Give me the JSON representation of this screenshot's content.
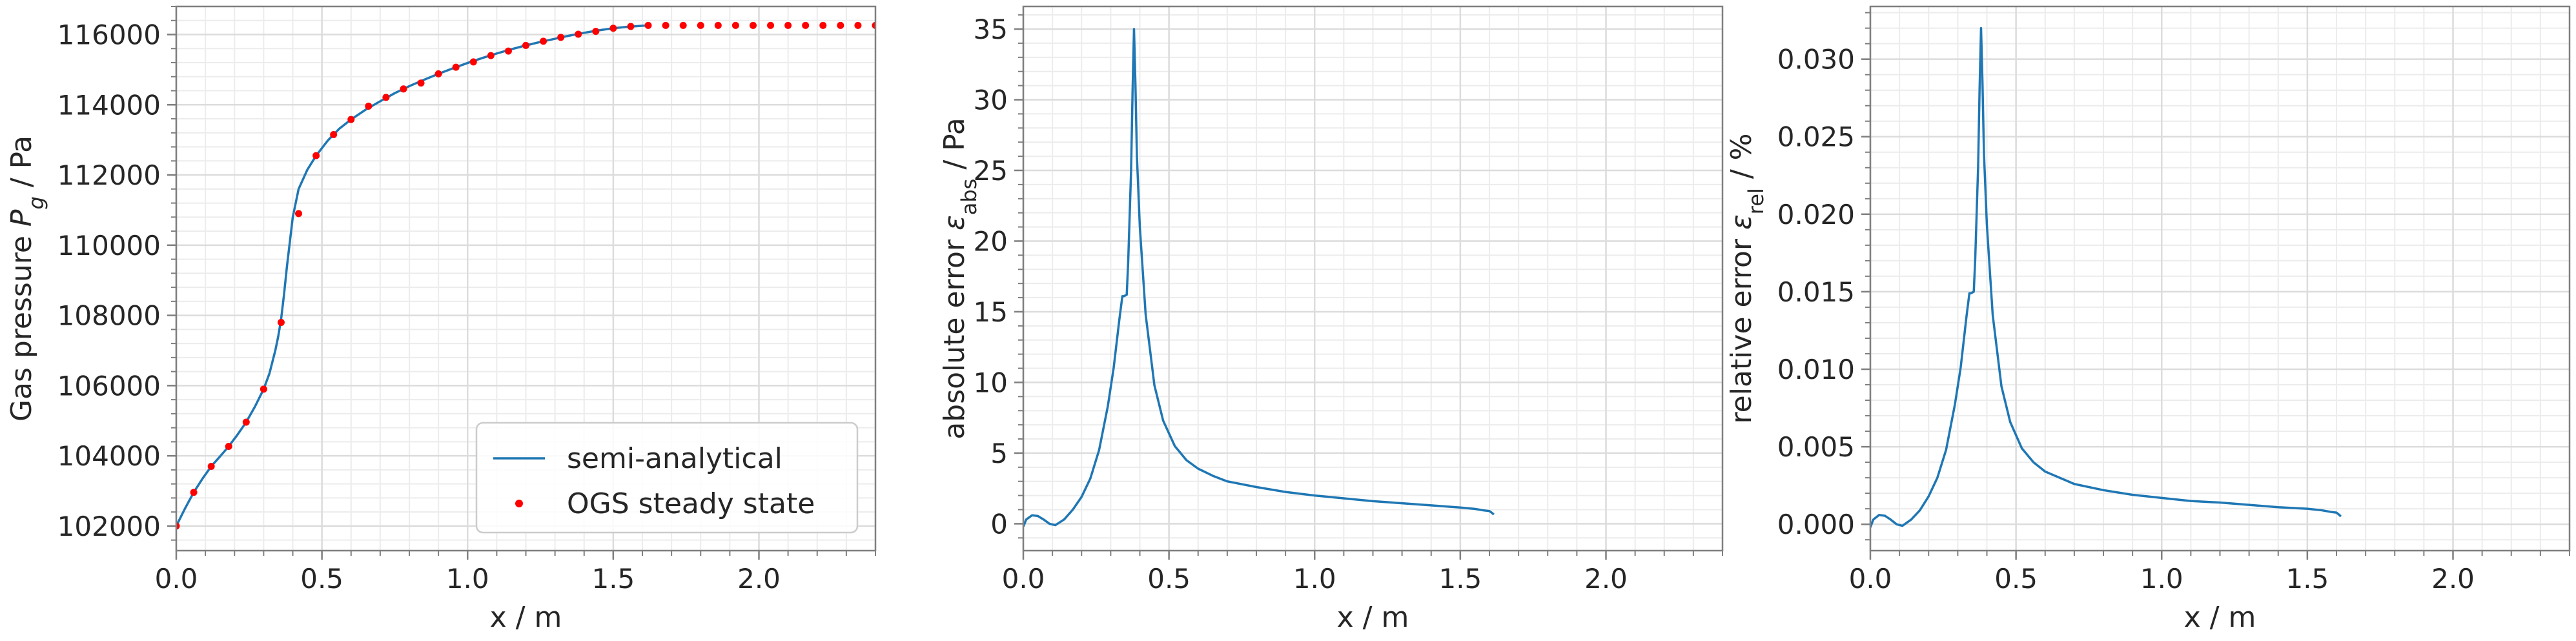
{
  "chart_data": [
    {
      "type": "line",
      "xlabel": "x / m",
      "ylabel": "Gas pressure P",
      "ylabel_sub": "g",
      "ylabel_unit": " / Pa",
      "xlim": [
        0.0,
        2.4
      ],
      "ylim": [
        101300,
        116800
      ],
      "xticks": [
        0.0,
        0.5,
        1.0,
        1.5,
        2.0
      ],
      "xtick_labels": [
        "0.0",
        "0.5",
        "1.0",
        "1.5",
        "2.0"
      ],
      "yticks": [
        102000,
        104000,
        106000,
        108000,
        110000,
        112000,
        114000,
        116000
      ],
      "ytick_labels": [
        "102000",
        "104000",
        "106000",
        "108000",
        "110000",
        "112000",
        "114000",
        "116000"
      ],
      "grid": true,
      "legend": "lower-right",
      "colors": {
        "line": "#1f77b4",
        "points": "#ff0000"
      },
      "series": [
        {
          "name": "semi-analytical",
          "kind": "line",
          "x": [
            0.0,
            0.03,
            0.06,
            0.09,
            0.12,
            0.15,
            0.18,
            0.21,
            0.24,
            0.27,
            0.3,
            0.32,
            0.34,
            0.35,
            0.36,
            0.37,
            0.38,
            0.39,
            0.4,
            0.42,
            0.45,
            0.48,
            0.52,
            0.56,
            0.6,
            0.65,
            0.7,
            0.75,
            0.8,
            0.85,
            0.9,
            0.95,
            1.0,
            1.05,
            1.1,
            1.15,
            1.2,
            1.25,
            1.3,
            1.35,
            1.4,
            1.45,
            1.5,
            1.55,
            1.6,
            1.62
          ],
          "y": [
            102000,
            102500,
            102960,
            103350,
            103700,
            103980,
            104270,
            104600,
            104960,
            105400,
            105900,
            106350,
            107000,
            107400,
            107900,
            108600,
            109400,
            110100,
            110800,
            111600,
            112150,
            112550,
            112980,
            113320,
            113580,
            113860,
            114100,
            114330,
            114530,
            114710,
            114880,
            115040,
            115190,
            115330,
            115460,
            115580,
            115690,
            115790,
            115880,
            115970,
            116050,
            116120,
            116180,
            116220,
            116250,
            116260
          ]
        },
        {
          "name": "OGS steady state",
          "kind": "scatter",
          "x": [
            0.0,
            0.06,
            0.12,
            0.18,
            0.24,
            0.3,
            0.36,
            0.42,
            0.48,
            0.54,
            0.6,
            0.66,
            0.72,
            0.78,
            0.84,
            0.9,
            0.96,
            1.02,
            1.08,
            1.14,
            1.2,
            1.26,
            1.32,
            1.38,
            1.44,
            1.5,
            1.56,
            1.62,
            1.68,
            1.74,
            1.8,
            1.86,
            1.92,
            1.98,
            2.04,
            2.1,
            2.16,
            2.22,
            2.28,
            2.34,
            2.4
          ],
          "y": [
            102000,
            102960,
            103700,
            104270,
            104960,
            105900,
            107800,
            110900,
            112550,
            113150,
            113580,
            113960,
            114210,
            114450,
            114620,
            114880,
            115070,
            115220,
            115400,
            115530,
            115690,
            115810,
            115920,
            116010,
            116090,
            116180,
            116230,
            116260,
            116260,
            116260,
            116260,
            116260,
            116260,
            116260,
            116260,
            116260,
            116260,
            116260,
            116260,
            116260,
            116260
          ]
        }
      ]
    },
    {
      "type": "line",
      "xlabel": "x / m",
      "ylabel": "absolute error ε",
      "ylabel_sub": "abs",
      "ylabel_unit": " / Pa",
      "xlim": [
        0.0,
        2.4
      ],
      "ylim": [
        -1.9,
        36.6
      ],
      "xticks": [
        0.0,
        0.5,
        1.0,
        1.5,
        2.0
      ],
      "xtick_labels": [
        "0.0",
        "0.5",
        "1.0",
        "1.5",
        "2.0"
      ],
      "yticks": [
        0,
        5,
        10,
        15,
        20,
        25,
        30,
        35
      ],
      "ytick_labels": [
        "0",
        "5",
        "10",
        "15",
        "20",
        "25",
        "30",
        "35"
      ],
      "grid": true,
      "colors": {
        "line": "#1f77b4"
      },
      "series": [
        {
          "x": [
            0.0,
            0.01,
            0.03,
            0.05,
            0.07,
            0.09,
            0.11,
            0.14,
            0.17,
            0.2,
            0.23,
            0.26,
            0.29,
            0.31,
            0.33,
            0.34,
            0.345,
            0.355,
            0.36,
            0.37,
            0.375,
            0.38,
            0.385,
            0.39,
            0.4,
            0.42,
            0.45,
            0.48,
            0.52,
            0.56,
            0.6,
            0.65,
            0.7,
            0.8,
            0.9,
            1.0,
            1.1,
            1.2,
            1.3,
            1.4,
            1.5,
            1.55,
            1.58,
            1.6,
            1.61,
            1.615
          ],
          "y": [
            -0.2,
            0.3,
            0.6,
            0.55,
            0.3,
            0.0,
            -0.1,
            0.3,
            1.0,
            1.9,
            3.2,
            5.2,
            8.3,
            11.0,
            14.5,
            16.1,
            16.1,
            16.2,
            18.5,
            25.0,
            30.5,
            35.0,
            31.0,
            26.0,
            21.0,
            14.8,
            9.8,
            7.3,
            5.5,
            4.5,
            3.9,
            3.4,
            3.0,
            2.6,
            2.25,
            2.0,
            1.8,
            1.6,
            1.45,
            1.3,
            1.15,
            1.05,
            0.95,
            0.9,
            0.75,
            0.65
          ]
        }
      ]
    },
    {
      "type": "line",
      "xlabel": "x / m",
      "ylabel": "relative error ε",
      "ylabel_sub": "rel",
      "ylabel_unit": " / %",
      "xlim": [
        0.0,
        2.4
      ],
      "ylim": [
        -0.0017,
        0.0334
      ],
      "xticks": [
        0.0,
        0.5,
        1.0,
        1.5,
        2.0
      ],
      "xtick_labels": [
        "0.0",
        "0.5",
        "1.0",
        "1.5",
        "2.0"
      ],
      "yticks": [
        0.0,
        0.005,
        0.01,
        0.015,
        0.02,
        0.025,
        0.03
      ],
      "ytick_labels": [
        "0.000",
        "0.005",
        "0.010",
        "0.015",
        "0.020",
        "0.025",
        "0.030"
      ],
      "grid": true,
      "colors": {
        "line": "#1f77b4"
      },
      "series": [
        {
          "x": [
            0.0,
            0.01,
            0.03,
            0.05,
            0.07,
            0.09,
            0.11,
            0.14,
            0.17,
            0.2,
            0.23,
            0.26,
            0.29,
            0.31,
            0.33,
            0.34,
            0.345,
            0.355,
            0.36,
            0.37,
            0.375,
            0.38,
            0.385,
            0.39,
            0.4,
            0.42,
            0.45,
            0.48,
            0.52,
            0.56,
            0.6,
            0.65,
            0.7,
            0.8,
            0.9,
            1.0,
            1.1,
            1.2,
            1.3,
            1.4,
            1.5,
            1.55,
            1.58,
            1.6,
            1.61,
            1.615
          ],
          "y": [
            -0.0002,
            0.0003,
            0.0006,
            0.00055,
            0.0003,
            0.0,
            -0.0001,
            0.0003,
            0.0009,
            0.0018,
            0.003,
            0.0048,
            0.0077,
            0.0101,
            0.0134,
            0.0149,
            0.0149,
            0.015,
            0.0171,
            0.0231,
            0.0281,
            0.032,
            0.0284,
            0.0239,
            0.0193,
            0.0135,
            0.0089,
            0.0066,
            0.0049,
            0.004,
            0.0034,
            0.003,
            0.0026,
            0.0022,
            0.0019,
            0.0017,
            0.0015,
            0.0014,
            0.00125,
            0.0011,
            0.001,
            0.0009,
            0.0008,
            0.00075,
            0.0006,
            0.0005
          ]
        }
      ]
    }
  ]
}
